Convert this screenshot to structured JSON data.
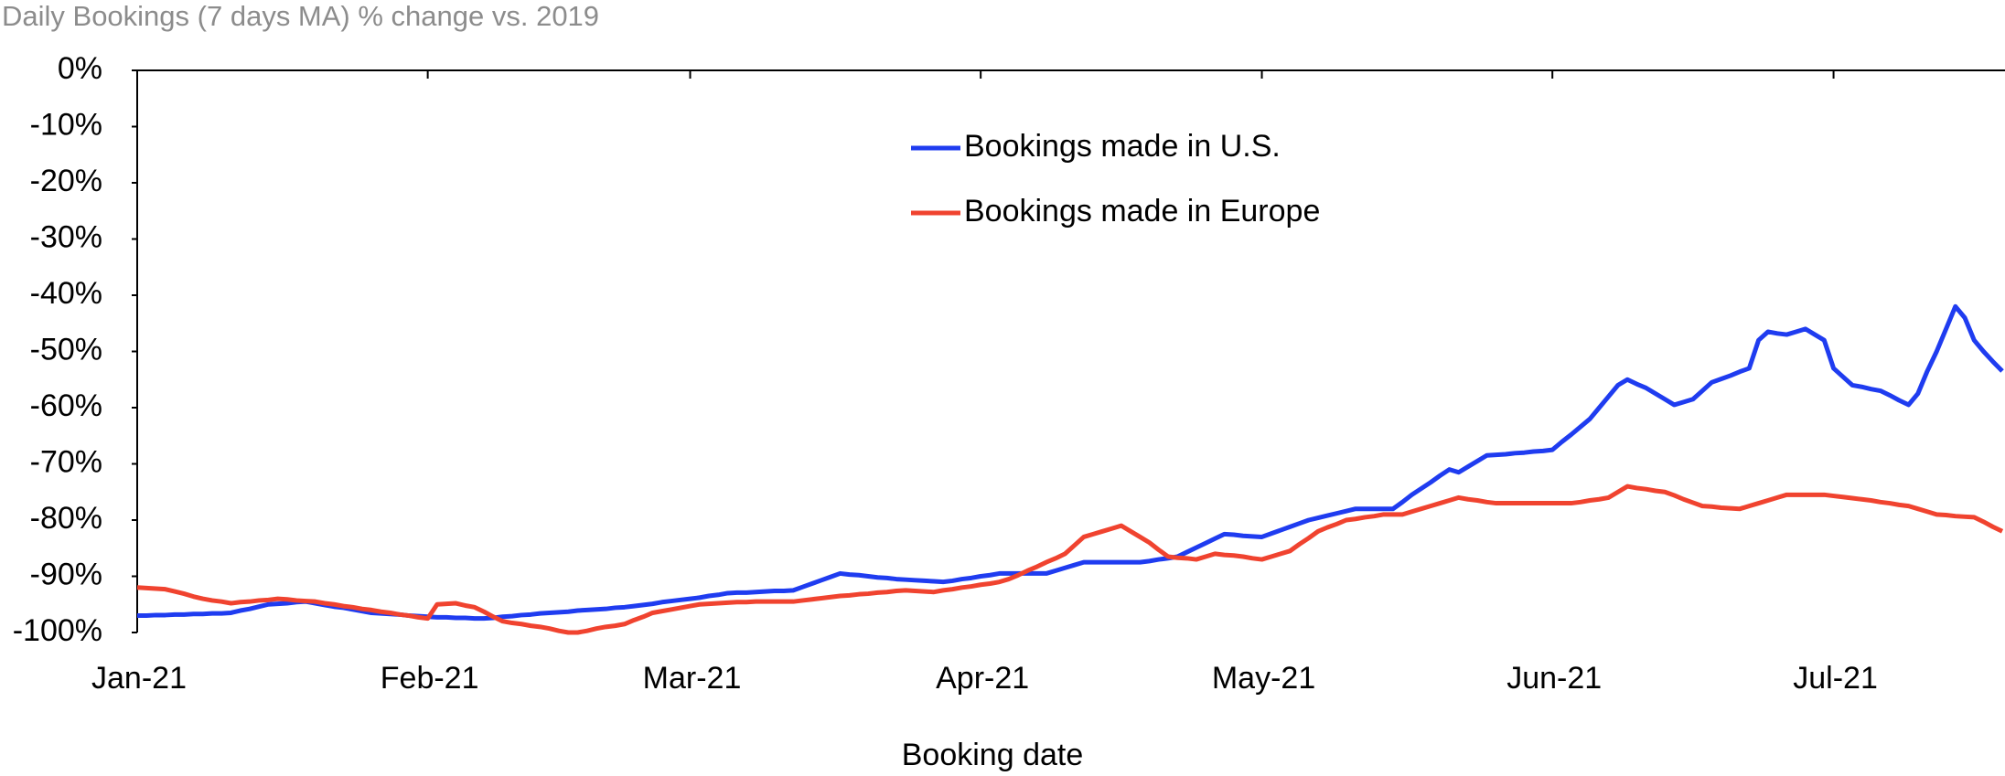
{
  "chart_data": {
    "type": "line",
    "title": "Daily Bookings (7 days MA)  % change vs. 2019",
    "x_label": "Booking date",
    "categories": [
      "Jan-21",
      null,
      null,
      null,
      null,
      null,
      null,
      null,
      null,
      null,
      null,
      null,
      null,
      null,
      null,
      null,
      null,
      null,
      null,
      null,
      null,
      null,
      null,
      null,
      null,
      null,
      null,
      null,
      null,
      null,
      null,
      "Feb-21",
      null,
      null,
      null,
      null,
      null,
      null,
      null,
      null,
      null,
      null,
      null,
      null,
      null,
      null,
      null,
      null,
      null,
      null,
      null,
      null,
      null,
      null,
      null,
      null,
      null,
      null,
      null,
      "Mar-21",
      null,
      null,
      null,
      null,
      null,
      null,
      null,
      null,
      null,
      null,
      null,
      null,
      null,
      null,
      null,
      null,
      null,
      null,
      null,
      null,
      null,
      null,
      null,
      null,
      null,
      null,
      null,
      null,
      null,
      null,
      "Apr-21",
      null,
      null,
      null,
      null,
      null,
      null,
      null,
      null,
      null,
      null,
      null,
      null,
      null,
      null,
      null,
      null,
      null,
      null,
      null,
      null,
      null,
      null,
      null,
      null,
      null,
      null,
      null,
      null,
      null,
      "May-21",
      null,
      null,
      null,
      null,
      null,
      null,
      null,
      null,
      null,
      null,
      null,
      null,
      null,
      null,
      null,
      null,
      null,
      null,
      null,
      null,
      null,
      null,
      null,
      null,
      null,
      null,
      null,
      null,
      null,
      null,
      "Jun-21",
      null,
      null,
      null,
      null,
      null,
      null,
      null,
      null,
      null,
      null,
      null,
      null,
      null,
      null,
      null,
      null,
      null,
      null,
      null,
      null,
      null,
      null,
      null,
      null,
      null,
      null,
      null,
      null,
      null,
      "Jul-21",
      null,
      null,
      null,
      null,
      null,
      null,
      null,
      null,
      null,
      null,
      null,
      null,
      null,
      null,
      null,
      null,
      null,
      null
    ],
    "series": [
      {
        "name": "Bookings made in U.S.",
        "color": "#1f3cf0",
        "values": [
          -97,
          -97,
          -96.9,
          -96.9,
          -96.8,
          -96.8,
          -96.7,
          -96.7,
          -96.6,
          -96.6,
          -96.5,
          -96.1,
          -95.8,
          -95.4,
          -95,
          -94.9,
          -94.8,
          -94.6,
          -94.5,
          -94.8,
          -95.1,
          -95.4,
          -95.6,
          -95.9,
          -96.2,
          -96.5,
          -96.6,
          -96.7,
          -96.8,
          -97,
          -97.1,
          -97.2,
          -97.3,
          -97.3,
          -97.4,
          -97.4,
          -97.5,
          -97.5,
          -97.4,
          -97.2,
          -97.1,
          -96.9,
          -96.8,
          -96.6,
          -96.5,
          -96.4,
          -96.3,
          -96.1,
          -96,
          -95.9,
          -95.8,
          -95.6,
          -95.5,
          -95.3,
          -95.1,
          -94.9,
          -94.6,
          -94.4,
          -94.2,
          -94,
          -93.8,
          -93.5,
          -93.3,
          -93,
          -92.9,
          -92.9,
          -92.8,
          -92.7,
          -92.6,
          -92.6,
          -92.5,
          -91.9,
          -91.3,
          -90.7,
          -90.1,
          -89.5,
          -89.7,
          -89.8,
          -90,
          -90.2,
          -90.3,
          -90.5,
          -90.6,
          -90.7,
          -90.8,
          -90.9,
          -91,
          -90.8,
          -90.5,
          -90.3,
          -90,
          -89.8,
          -89.5,
          -89.5,
          -89.5,
          -89.5,
          -89.5,
          -89.5,
          -89,
          -88.5,
          -88,
          -87.5,
          -87.5,
          -87.5,
          -87.5,
          -87.5,
          -87.5,
          -87.5,
          -87.3,
          -87,
          -86.8,
          -86.5,
          -85.7,
          -84.9,
          -84.1,
          -83.3,
          -82.5,
          -82.6,
          -82.8,
          -82.9,
          -83,
          -82.4,
          -81.8,
          -81.2,
          -80.6,
          -80,
          -79.6,
          -79.2,
          -78.8,
          -78.4,
          -78,
          -78,
          -78,
          -78,
          -78,
          -76.8,
          -75.5,
          -74.4,
          -73.3,
          -72.1,
          -71,
          -71.5,
          -70.5,
          -69.5,
          -68.5,
          -68.4,
          -68.3,
          -68.1,
          -68,
          -67.8,
          -67.7,
          -67.5,
          -66.1,
          -64.8,
          -63.4,
          -62,
          -60,
          -58,
          -56,
          -55,
          -55.8,
          -56.5,
          -57.5,
          -58.5,
          -59.5,
          -59,
          -58.5,
          -57,
          -55.5,
          -54.9,
          -54.3,
          -53.6,
          -53,
          -48,
          -46.5,
          -46.8,
          -47,
          -46.5,
          -46,
          -47,
          -48,
          -53,
          -54.5,
          -56,
          -56.3,
          -56.7,
          -57,
          -57.8,
          -58.7,
          -59.5,
          -57.5,
          -53.5,
          -50,
          -46,
          -42,
          -44,
          -48,
          -50,
          -51.8,
          -53.5
        ]
      },
      {
        "name": "Bookings made in Europe",
        "color": "#f0432f",
        "values": [
          -92,
          -92.1,
          -92.2,
          -92.3,
          -92.7,
          -93.1,
          -93.6,
          -94,
          -94.3,
          -94.5,
          -94.8,
          -94.6,
          -94.5,
          -94.3,
          -94.2,
          -94,
          -94.1,
          -94.3,
          -94.4,
          -94.5,
          -94.8,
          -95,
          -95.3,
          -95.5,
          -95.8,
          -96,
          -96.3,
          -96.5,
          -96.8,
          -97,
          -97.3,
          -97.5,
          -95,
          -94.9,
          -94.8,
          -95.2,
          -95.5,
          -96.3,
          -97.2,
          -98,
          -98.3,
          -98.5,
          -98.8,
          -99,
          -99.3,
          -99.7,
          -100,
          -100,
          -99.7,
          -99.3,
          -99,
          -98.8,
          -98.5,
          -97.8,
          -97.2,
          -96.5,
          -96.2,
          -95.9,
          -95.6,
          -95.3,
          -95,
          -94.9,
          -94.8,
          -94.7,
          -94.6,
          -94.6,
          -94.5,
          -94.5,
          -94.5,
          -94.5,
          -94.5,
          -94.3,
          -94.1,
          -93.9,
          -93.7,
          -93.5,
          -93.4,
          -93.2,
          -93.1,
          -92.9,
          -92.8,
          -92.6,
          -92.5,
          -92.6,
          -92.7,
          -92.8,
          -92.5,
          -92.3,
          -92,
          -91.8,
          -91.5,
          -91.3,
          -91,
          -90.5,
          -89.8,
          -89,
          -88.3,
          -87.5,
          -86.8,
          -86,
          -84.5,
          -83,
          -82.5,
          -82,
          -81.5,
          -81,
          -82,
          -83,
          -84,
          -85.3,
          -86.5,
          -86.7,
          -86.8,
          -87,
          -86.5,
          -86,
          -86.2,
          -86.3,
          -86.5,
          -86.8,
          -87,
          -86.5,
          -86,
          -85.5,
          -84.3,
          -83.2,
          -82,
          -81.3,
          -80.7,
          -80,
          -79.8,
          -79.5,
          -79.3,
          -79,
          -79,
          -79,
          -78.5,
          -78,
          -77.5,
          -77,
          -76.5,
          -76,
          -76.3,
          -76.5,
          -76.8,
          -77,
          -77,
          -77,
          -77,
          -77,
          -77,
          -77,
          -77,
          -77,
          -76.8,
          -76.5,
          -76.3,
          -76,
          -75,
          -74,
          -74.3,
          -74.5,
          -74.8,
          -75,
          -75.6,
          -76.3,
          -76.9,
          -77.5,
          -77.6,
          -77.8,
          -77.9,
          -78,
          -77.5,
          -77,
          -76.5,
          -76,
          -75.5,
          -75.5,
          -75.5,
          -75.5,
          -75.5,
          -75.7,
          -75.9,
          -76.1,
          -76.3,
          -76.5,
          -76.8,
          -77,
          -77.3,
          -77.5,
          -78,
          -78.5,
          -79,
          -79.1,
          -79.3,
          -79.4,
          -79.5,
          -80.3,
          -81.2,
          -82
        ]
      }
    ],
    "ylim": [
      -100,
      0
    ],
    "yticks": [
      {
        "value": 0,
        "label": "0%"
      },
      {
        "value": -10,
        "label": "-10%"
      },
      {
        "value": -20,
        "label": "-20%"
      },
      {
        "value": -30,
        "label": "-30%"
      },
      {
        "value": -40,
        "label": "-40%"
      },
      {
        "value": -50,
        "label": "-50%"
      },
      {
        "value": -60,
        "label": "-60%"
      },
      {
        "value": -70,
        "label": "-70%"
      },
      {
        "value": -80,
        "label": "-80%"
      },
      {
        "value": -90,
        "label": "-90%"
      },
      {
        "value": -100,
        "label": "-100%"
      }
    ],
    "grid": false
  }
}
